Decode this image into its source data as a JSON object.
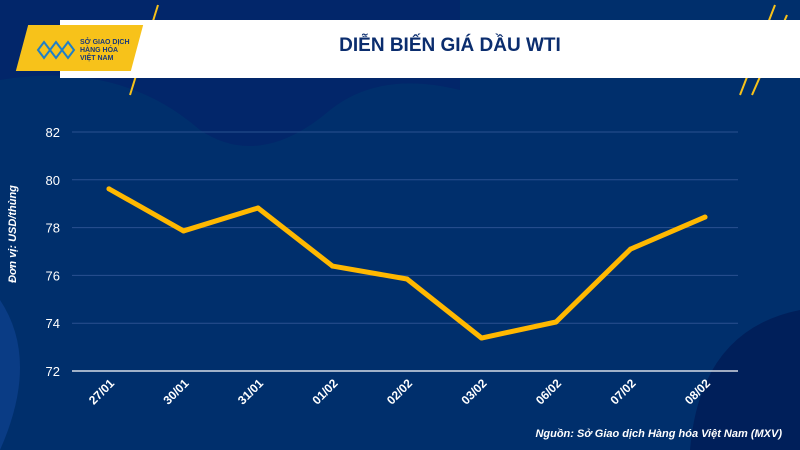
{
  "header": {
    "title": "DIỄN BIẾN GIÁ DẦU WTI",
    "logo_text": "SỞ GIAO DỊCH\nHÀNG HÓA\nVIỆT NAM"
  },
  "source": "Nguồn: Sở Giao dịch Hàng hóa Việt Nam (MXV)",
  "colors": {
    "background": "#002f6c",
    "line": "#ffb800",
    "accent": "#f7c21a"
  },
  "chart_data": {
    "type": "line",
    "title": "DIỄN BIẾN GIÁ DẦU WTI",
    "ylabel": "Đơn vị: USD/thùng",
    "xlabel": "",
    "categories": [
      "27/01",
      "30/01",
      "31/01",
      "01/02",
      "02/02",
      "03/02",
      "06/02",
      "07/02",
      "08/02"
    ],
    "values": [
      79.62,
      77.86,
      78.82,
      76.39,
      75.85,
      73.38,
      74.05,
      77.1,
      78.44
    ],
    "ylim": [
      72,
      82
    ],
    "yticks": [
      "72",
      "74",
      "76",
      "78",
      "80",
      "82"
    ],
    "grid": true
  }
}
